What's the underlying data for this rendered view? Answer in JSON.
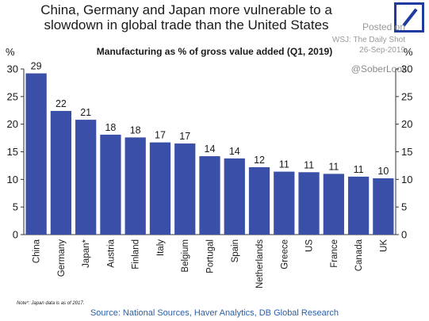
{
  "chart_data": {
    "type": "bar",
    "title_line1": "China, Germany and Japan more vulnerable to a",
    "title_line2": "slowdown in global trade than the United States",
    "subtitle": "Manufacturing as % of gross value added (Q1, 2019)",
    "y_unit_left": "%",
    "y_unit_right": "%",
    "categories": [
      "China",
      "Germany",
      "Japan*",
      "Austria",
      "Finland",
      "Italy",
      "Belgium",
      "Portugal",
      "Spain",
      "Netherlands",
      "Greece",
      "US",
      "France",
      "Canada",
      "UK"
    ],
    "values": [
      29.2,
      22.4,
      20.8,
      18.1,
      17.6,
      16.7,
      16.5,
      14.2,
      13.8,
      12.2,
      11.4,
      11.3,
      11.0,
      10.5,
      10.2
    ],
    "data_labels": [
      "29",
      "22",
      "21",
      "18",
      "18",
      "17",
      "17",
      "14",
      "14",
      "12",
      "11",
      "11",
      "11",
      "11",
      "10"
    ],
    "ylim": [
      0,
      30
    ],
    "yticks": [
      0,
      5,
      10,
      15,
      20,
      25,
      30
    ],
    "grid": false,
    "legend": "none",
    "bar_color": "#3a4fa8",
    "note": "Note*: Japan data is as of 2017.",
    "source": "Source: National Sources, Haver Analytics, DB Global Research"
  },
  "watermark": {
    "posted": "Posted on",
    "outlet": "WSJ: The Daily Shot",
    "date": "26-Sep-2019",
    "handle": "@SoberLook"
  },
  "logo": {
    "name": "deutsche-bank-logo",
    "color": "#1f3ba0"
  }
}
